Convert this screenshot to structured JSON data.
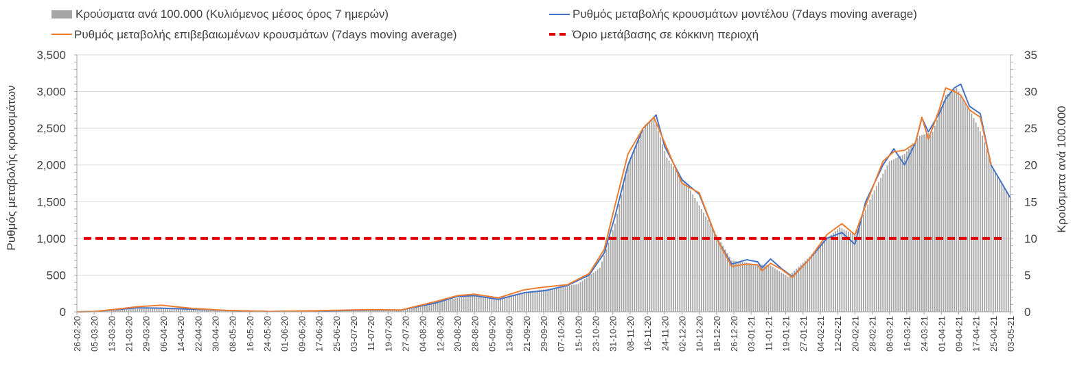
{
  "chart_data": {
    "type": "bar",
    "title": "",
    "legend": {
      "placement": "top",
      "entries": [
        {
          "key": "bars",
          "label": "Κρούσματα ανά 100.000 (Κυλιόμενος μέσος όρος 7 ημερών)"
        },
        {
          "key": "model",
          "label": "Ρυθμός μεταβολής κρουσμάτων μοντέλου (7days moving average)"
        },
        {
          "key": "confirmed",
          "label": "Ρυθμός μεταβολής επιβεβαιωμένων κρουσμάτων (7days moving average)"
        },
        {
          "key": "threshold",
          "label": "Όριο μετάβασης σε κόκκινη περιοχή"
        }
      ]
    },
    "y_left": {
      "label": "Ρυθμός μεταβολής κρουσμάτων",
      "range": [
        0,
        3500
      ],
      "ticks": [
        "0",
        "500",
        "1,000",
        "1,500",
        "2,000",
        "2,500",
        "3,000",
        "3,500"
      ]
    },
    "y_right": {
      "label": "Κρούσματα ανά 100.000",
      "range": [
        0,
        35
      ],
      "ticks": [
        "0",
        "5",
        "10",
        "15",
        "20",
        "25",
        "30",
        "35"
      ]
    },
    "x_axis": {
      "start_date": "2020-02-26",
      "end_date": "2021-05-03",
      "tick_labels": [
        "26-02-20",
        "05-03-20",
        "13-03-20",
        "21-03-20",
        "29-03-20",
        "06-04-20",
        "14-04-20",
        "22-04-20",
        "30-04-20",
        "08-05-20",
        "16-05-20",
        "24-05-20",
        "01-06-20",
        "09-06-20",
        "17-06-20",
        "25-06-20",
        "03-07-20",
        "11-07-20",
        "19-07-20",
        "27-07-20",
        "04-08-20",
        "12-08-20",
        "20-08-20",
        "28-08-20",
        "05-09-20",
        "13-09-20",
        "21-09-20",
        "29-09-20",
        "07-10-20",
        "15-10-20",
        "23-10-20",
        "31-10-20",
        "08-11-20",
        "16-11-20",
        "24-11-20",
        "02-12-20",
        "10-12-20",
        "18-12-20",
        "26-12-20",
        "03-01-21",
        "11-01-21",
        "19-01-21",
        "27-01-21",
        "04-02-21",
        "12-02-21",
        "20-02-21",
        "28-02-21",
        "08-03-21",
        "16-03-21",
        "24-03-21",
        "01-04-21",
        "09-04-21",
        "17-04-21",
        "25-04-21",
        "03-05-21"
      ]
    },
    "grid": true,
    "threshold_value": 1000,
    "bar_series_keypoints": [
      [
        "2020-02-26",
        0
      ],
      [
        "2020-03-05",
        0.1
      ],
      [
        "2020-03-20",
        0.4
      ],
      [
        "2020-04-05",
        0.5
      ],
      [
        "2020-04-25",
        0.3
      ],
      [
        "2020-05-20",
        0.1
      ],
      [
        "2020-06-10",
        0.1
      ],
      [
        "2020-07-10",
        0.3
      ],
      [
        "2020-07-25",
        0.3
      ],
      [
        "2020-08-10",
        1.3
      ],
      [
        "2020-08-25",
        2.2
      ],
      [
        "2020-09-08",
        1.8
      ],
      [
        "2020-09-20",
        2.7
      ],
      [
        "2020-10-05",
        3.3
      ],
      [
        "2020-10-15",
        3.8
      ],
      [
        "2020-10-25",
        6.0
      ],
      [
        "2020-11-01",
        12.0
      ],
      [
        "2020-11-07",
        20.0
      ],
      [
        "2020-11-15",
        25.5
      ],
      [
        "2020-11-19",
        26.5
      ],
      [
        "2020-11-25",
        21.0
      ],
      [
        "2020-12-05",
        17.0
      ],
      [
        "2020-12-15",
        12.0
      ],
      [
        "2020-12-25",
        7.0
      ],
      [
        "2021-01-05",
        6.5
      ],
      [
        "2021-01-12",
        6.3
      ],
      [
        "2021-01-20",
        4.8
      ],
      [
        "2021-01-30",
        7.5
      ],
      [
        "2021-02-05",
        9.5
      ],
      [
        "2021-02-13",
        11.5
      ],
      [
        "2021-02-20",
        10.5
      ],
      [
        "2021-02-28",
        16.0
      ],
      [
        "2021-03-08",
        20.5
      ],
      [
        "2021-03-15",
        21.5
      ],
      [
        "2021-03-22",
        24.0
      ],
      [
        "2021-03-28",
        24.5
      ],
      [
        "2021-04-03",
        29.5
      ],
      [
        "2021-04-08",
        30.5
      ],
      [
        "2021-04-15",
        27.0
      ],
      [
        "2021-04-20",
        24.0
      ],
      [
        "2021-04-25",
        19.5
      ],
      [
        "2021-05-03",
        15.5
      ]
    ],
    "series": [
      {
        "name": "Ρυθμός μεταβολής κρουσμάτων μοντέλου (7days moving average)",
        "color": "#4472c4",
        "points": [
          [
            "2020-02-26",
            0
          ],
          [
            "2020-03-05",
            5
          ],
          [
            "2020-03-15",
            30
          ],
          [
            "2020-03-25",
            55
          ],
          [
            "2020-04-05",
            50
          ],
          [
            "2020-04-20",
            35
          ],
          [
            "2020-05-05",
            20
          ],
          [
            "2020-05-25",
            5
          ],
          [
            "2020-06-15",
            10
          ],
          [
            "2020-07-10",
            25
          ],
          [
            "2020-07-25",
            25
          ],
          [
            "2020-08-10",
            120
          ],
          [
            "2020-08-20",
            210
          ],
          [
            "2020-08-28",
            220
          ],
          [
            "2020-09-08",
            170
          ],
          [
            "2020-09-20",
            260
          ],
          [
            "2020-09-30",
            290
          ],
          [
            "2020-10-10",
            360
          ],
          [
            "2020-10-20",
            500
          ],
          [
            "2020-10-27",
            800
          ],
          [
            "2020-11-01",
            1300
          ],
          [
            "2020-11-07",
            2000
          ],
          [
            "2020-11-14",
            2500
          ],
          [
            "2020-11-20",
            2680
          ],
          [
            "2020-11-24",
            2250
          ],
          [
            "2020-12-02",
            1800
          ],
          [
            "2020-12-10",
            1600
          ],
          [
            "2020-12-18",
            1000
          ],
          [
            "2020-12-25",
            650
          ],
          [
            "2021-01-01",
            710
          ],
          [
            "2021-01-06",
            680
          ],
          [
            "2021-01-08",
            600
          ],
          [
            "2021-01-12",
            720
          ],
          [
            "2021-01-17",
            590
          ],
          [
            "2021-01-22",
            480
          ],
          [
            "2021-01-30",
            720
          ],
          [
            "2021-02-07",
            1000
          ],
          [
            "2021-02-14",
            1080
          ],
          [
            "2021-02-20",
            920
          ],
          [
            "2021-02-25",
            1500
          ],
          [
            "2021-03-05",
            2000
          ],
          [
            "2021-03-10",
            2220
          ],
          [
            "2021-03-15",
            2000
          ],
          [
            "2021-03-20",
            2300
          ],
          [
            "2021-03-23",
            2640
          ],
          [
            "2021-03-26",
            2450
          ],
          [
            "2021-03-31",
            2700
          ],
          [
            "2021-04-03",
            2900
          ],
          [
            "2021-04-07",
            3050
          ],
          [
            "2021-04-10",
            3100
          ],
          [
            "2021-04-14",
            2800
          ],
          [
            "2021-04-19",
            2700
          ],
          [
            "2021-04-24",
            2000
          ],
          [
            "2021-05-03",
            1550
          ]
        ]
      },
      {
        "name": "Ρυθμός μεταβολής επιβεβαιωμένων κρουσμάτων (7days moving average)",
        "color": "#ed7d31",
        "points": [
          [
            "2020-02-26",
            0
          ],
          [
            "2020-03-05",
            5
          ],
          [
            "2020-03-15",
            35
          ],
          [
            "2020-03-25",
            70
          ],
          [
            "2020-04-05",
            90
          ],
          [
            "2020-04-20",
            45
          ],
          [
            "2020-05-05",
            20
          ],
          [
            "2020-05-25",
            5
          ],
          [
            "2020-06-15",
            15
          ],
          [
            "2020-07-10",
            30
          ],
          [
            "2020-07-25",
            25
          ],
          [
            "2020-08-10",
            140
          ],
          [
            "2020-08-20",
            220
          ],
          [
            "2020-08-28",
            240
          ],
          [
            "2020-09-08",
            190
          ],
          [
            "2020-09-20",
            300
          ],
          [
            "2020-09-30",
            340
          ],
          [
            "2020-10-10",
            370
          ],
          [
            "2020-10-20",
            520
          ],
          [
            "2020-10-27",
            850
          ],
          [
            "2020-11-01",
            1450
          ],
          [
            "2020-11-07",
            2150
          ],
          [
            "2020-11-14",
            2500
          ],
          [
            "2020-11-19",
            2650
          ],
          [
            "2020-11-24",
            2300
          ],
          [
            "2020-12-02",
            1750
          ],
          [
            "2020-12-10",
            1620
          ],
          [
            "2020-12-18",
            1000
          ],
          [
            "2020-12-25",
            620
          ],
          [
            "2021-01-01",
            650
          ],
          [
            "2021-01-06",
            640
          ],
          [
            "2021-01-08",
            560
          ],
          [
            "2021-01-12",
            660
          ],
          [
            "2021-01-17",
            580
          ],
          [
            "2021-01-22",
            470
          ],
          [
            "2021-01-30",
            720
          ],
          [
            "2021-02-07",
            1050
          ],
          [
            "2021-02-14",
            1200
          ],
          [
            "2021-02-20",
            1050
          ],
          [
            "2021-02-25",
            1450
          ],
          [
            "2021-03-05",
            2050
          ],
          [
            "2021-03-10",
            2180
          ],
          [
            "2021-03-15",
            2200
          ],
          [
            "2021-03-20",
            2300
          ],
          [
            "2021-03-23",
            2650
          ],
          [
            "2021-03-26",
            2350
          ],
          [
            "2021-03-31",
            2750
          ],
          [
            "2021-04-03",
            3050
          ],
          [
            "2021-04-07",
            3000
          ],
          [
            "2021-04-10",
            2950
          ],
          [
            "2021-04-14",
            2750
          ],
          [
            "2021-04-19",
            2650
          ],
          [
            "2021-04-24",
            2000
          ]
        ]
      }
    ],
    "colors": {
      "bars": "#a6a6a6",
      "model": "#4472c4",
      "confirmed": "#ed7d31",
      "threshold": "#e00000",
      "grid": "#d9d9d9",
      "axis": "#a6a6a6",
      "text": "#404040"
    }
  }
}
